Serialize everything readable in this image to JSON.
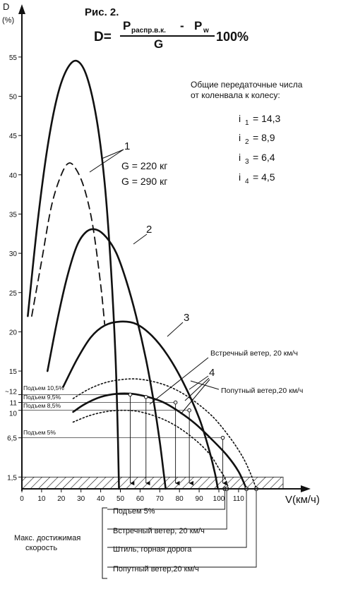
{
  "figure": {
    "label": "Рис. 2.",
    "formula": {
      "lhs": "D=",
      "numerator_a": "P",
      "numerator_a_sub": "распр.в.к.",
      "minus": "-",
      "numerator_b": "P",
      "numerator_b_sub": "w",
      "denominator": "G",
      "tail": "100%"
    },
    "ratios_title_1": "Общие передаточные числа",
    "ratios_title_2": "от коленвала к колесу:",
    "ratios": [
      {
        "name": "i",
        "sub": "1",
        "value": "= 14,3"
      },
      {
        "name": "i",
        "sub": "2",
        "value": "= 8,9"
      },
      {
        "name": "i",
        "sub": "3",
        "value": "= 6,4"
      },
      {
        "name": "i",
        "sub": "4",
        "value": "= 4,5"
      }
    ],
    "weights": [
      "G = 220 кг",
      "G = 290 кг"
    ],
    "curve_numbers": [
      "1",
      "2",
      "3",
      "4"
    ],
    "headwind_label": "Встречный ветер, 20 км/ч",
    "tailwind_label": "Попутный ветер,20 км/ч",
    "climb_labels": [
      "Подъем 10,5%",
      "Подъем 9,5%",
      "Подъем 8,5%",
      "Подъем 5%"
    ],
    "max_speed_title_1": "Макс. достижимая",
    "max_speed_title_2": "скорость",
    "max_speed_items": [
      "Подъем 5%",
      "Встречный ветер, 20 км/ч",
      "Штиль, горная дорога",
      "Попутный ветер,20 км/ч"
    ]
  },
  "chart_data": {
    "type": "line",
    "ylabel": "D",
    "yunit": "(%)",
    "xlabel": "V(км/ч)",
    "xlim": [
      0,
      125
    ],
    "ylim": [
      0,
      57
    ],
    "x_ticks": [
      "0",
      "10",
      "20",
      "30",
      "40",
      "50",
      "60",
      "70",
      "80",
      "90",
      "100",
      "110"
    ],
    "y_ticks": [
      {
        "label": "1,5",
        "value": 1.5
      },
      {
        "label": "6,5",
        "value": 6.5
      },
      {
        "label": "10",
        "value": 10
      },
      {
        "label": "11",
        "value": 11
      },
      {
        "label": "~12",
        "value": 12
      },
      {
        "label": "15",
        "value": 15
      },
      {
        "label": "20",
        "value": 20
      },
      {
        "label": "25",
        "value": 25
      },
      {
        "label": "30",
        "value": 30
      },
      {
        "label": "35",
        "value": 35
      },
      {
        "label": "40",
        "value": 40
      },
      {
        "label": "45",
        "value": 45
      },
      {
        "label": "50",
        "value": 50
      },
      {
        "label": "55",
        "value": 55
      }
    ],
    "series": [
      {
        "name": "1",
        "style": "solid",
        "points": [
          [
            3,
            22
          ],
          [
            8,
            34
          ],
          [
            13,
            43.5
          ],
          [
            18,
            50
          ],
          [
            23,
            53.5
          ],
          [
            28,
            54.5
          ],
          [
            33,
            52.5
          ],
          [
            38,
            47
          ],
          [
            42,
            39
          ],
          [
            45,
            29
          ],
          [
            47.5,
            17
          ],
          [
            48.8,
            6
          ],
          [
            49.3,
            0
          ]
        ]
      },
      {
        "name": "1",
        "style": "dashed",
        "points": [
          [
            5,
            22
          ],
          [
            10,
            29
          ],
          [
            15,
            36
          ],
          [
            20,
            40
          ],
          [
            24,
            41.5
          ],
          [
            28,
            40.5
          ],
          [
            32,
            38
          ],
          [
            36,
            33.5
          ],
          [
            40,
            26
          ],
          [
            42,
            21
          ]
        ]
      },
      {
        "name": "2",
        "style": "solid",
        "points": [
          [
            13,
            15
          ],
          [
            18,
            21.5
          ],
          [
            23,
            27
          ],
          [
            28,
            31
          ],
          [
            33,
            32.8
          ],
          [
            38,
            33
          ],
          [
            43,
            32
          ],
          [
            48,
            30
          ],
          [
            53,
            26.5
          ],
          [
            58,
            22
          ],
          [
            63,
            16.5
          ],
          [
            67,
            11
          ],
          [
            70,
            6
          ],
          [
            72,
            2
          ],
          [
            73,
            0
          ]
        ]
      },
      {
        "name": "3",
        "style": "solid",
        "points": [
          [
            21,
            13
          ],
          [
            28,
            16.5
          ],
          [
            35,
            19.3
          ],
          [
            42,
            20.8
          ],
          [
            50,
            21.3
          ],
          [
            58,
            21
          ],
          [
            66,
            19.5
          ],
          [
            74,
            17
          ],
          [
            82,
            13.5
          ],
          [
            90,
            9
          ],
          [
            95,
            5
          ],
          [
            98,
            2
          ],
          [
            99.5,
            0
          ]
        ]
      },
      {
        "name": "4",
        "style": "solid",
        "points": [
          [
            26,
            9.8
          ],
          [
            32,
            10.8
          ],
          [
            40,
            11.7
          ],
          [
            48,
            12.1
          ],
          [
            56,
            12.1
          ],
          [
            64,
            11.7
          ],
          [
            72,
            11
          ],
          [
            80,
            9.8
          ],
          [
            88,
            8.3
          ],
          [
            96,
            6.4
          ],
          [
            104,
            4.3
          ],
          [
            110,
            2.2
          ],
          [
            114,
            0
          ]
        ]
      },
      {
        "name": "4",
        "style": "dotted",
        "points": [
          [
            26,
            11.5
          ],
          [
            34,
            12.7
          ],
          [
            42,
            13.5
          ],
          [
            50,
            13.9
          ],
          [
            58,
            14
          ],
          [
            66,
            13.7
          ],
          [
            74,
            13.1
          ],
          [
            82,
            12.1
          ],
          [
            90,
            10.7
          ],
          [
            98,
            8.9
          ],
          [
            106,
            6.4
          ],
          [
            112,
            4.1
          ],
          [
            116,
            2
          ],
          [
            119,
            0
          ]
        ]
      },
      {
        "name": "4",
        "style": "dotted",
        "points": [
          [
            26,
            8.5
          ],
          [
            34,
            9.3
          ],
          [
            42,
            9.8
          ],
          [
            50,
            10
          ],
          [
            58,
            9.9
          ],
          [
            66,
            9.4
          ],
          [
            74,
            8.6
          ],
          [
            82,
            7.4
          ],
          [
            90,
            5.8
          ],
          [
            96,
            4.2
          ],
          [
            100,
            2.6
          ],
          [
            103,
            1.4
          ],
          [
            105,
            0
          ]
        ]
      }
    ],
    "drop_points": [
      {
        "x": 55,
        "y": 12
      },
      {
        "x": 63,
        "y": 11.7
      },
      {
        "x": 78,
        "y": 11
      },
      {
        "x": 85,
        "y": 10
      },
      {
        "x": 102,
        "y": 6.5
      }
    ],
    "road_resistance": 1.5,
    "max_speeds": [
      103,
      104,
      114,
      119
    ]
  }
}
